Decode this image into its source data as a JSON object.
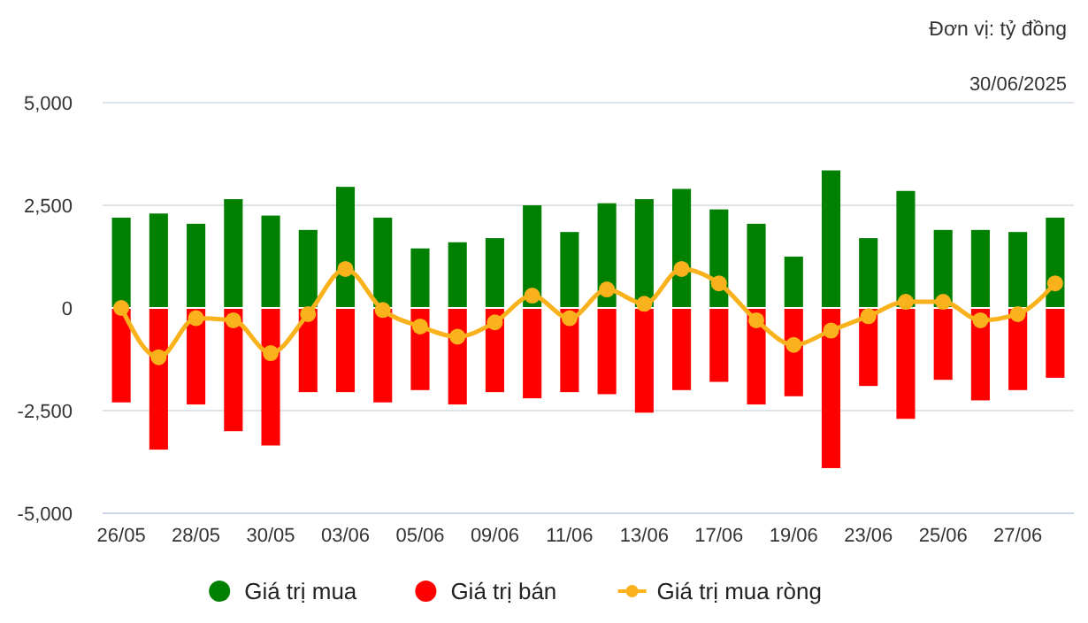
{
  "chart_data": {
    "type": "bar",
    "title": "Đơn vị: tỷ đồng",
    "subtitle": "30/06/2025",
    "categories": [
      "26/05",
      null,
      "28/05",
      null,
      "30/05",
      null,
      "03/06",
      null,
      "05/06",
      null,
      "09/06",
      null,
      "11/06",
      null,
      "13/06",
      null,
      "17/06",
      null,
      "19/06",
      null,
      "23/06",
      null,
      "25/06",
      null,
      "27/06",
      null
    ],
    "stacked": true,
    "series": [
      {
        "name": "Giá trị mua",
        "color": "#008000",
        "values": [
          2200,
          2300,
          2050,
          2650,
          2250,
          1900,
          2950,
          2200,
          1450,
          1600,
          1700,
          2500,
          1850,
          2550,
          2650,
          2900,
          2400,
          2050,
          1250,
          3350,
          1700,
          2850,
          1900,
          1900,
          1850,
          2200
        ]
      },
      {
        "name": "Giá trị bán",
        "color": "#ff0000",
        "values": [
          -2300,
          -3450,
          -2350,
          -3000,
          -3350,
          -2050,
          -2050,
          -2300,
          -2000,
          -2350,
          -2050,
          -2200,
          -2050,
          -2100,
          -2550,
          -2000,
          -1800,
          -2350,
          -2150,
          -3900,
          -1900,
          -2700,
          -1750,
          -2250,
          -2000,
          -1700
        ]
      },
      {
        "name": "Giá trị mua ròng",
        "type": "line",
        "color": "#f9b11c",
        "marker": "circle",
        "values": [
          0,
          -1200,
          -250,
          -300,
          -1100,
          -150,
          950,
          -50,
          -450,
          -700,
          -350,
          300,
          -250,
          450,
          100,
          950,
          600,
          -300,
          -900,
          -550,
          -200,
          150,
          150,
          -300,
          -150,
          600
        ]
      }
    ],
    "ylim": [
      -5000,
      5000
    ],
    "yticks": [
      {
        "value": -5000,
        "label": "-5,000"
      },
      {
        "value": -2500,
        "label": "-2,500"
      },
      0,
      {
        "value": 2500,
        "label": "2,500"
      },
      {
        "value": 5000,
        "label": "5,000"
      }
    ],
    "grid": "y",
    "legend": "bottom"
  }
}
